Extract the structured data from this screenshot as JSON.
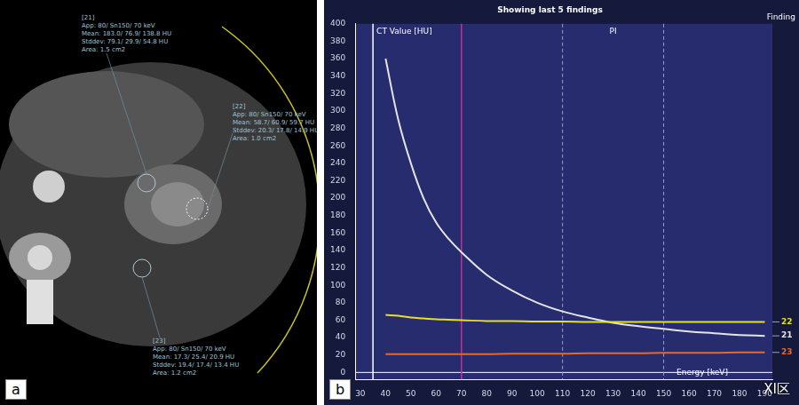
{
  "chart_data": {
    "type": "line",
    "title": "Showing last 5 findings",
    "y_label": "CT Value [HU]",
    "x_label": "Energy [keV]",
    "annotations": [
      "PI",
      "Finding"
    ],
    "x": [
      40,
      45,
      50,
      55,
      60,
      65,
      70,
      80,
      90,
      100,
      110,
      120,
      130,
      140,
      150,
      160,
      170,
      180,
      190
    ],
    "series": [
      {
        "name": "22",
        "color": "#e6df2a",
        "values": [
          66,
          65,
          63,
          62,
          61,
          60.5,
          60,
          59,
          59,
          58.5,
          58.5,
          58,
          58,
          58,
          58,
          58,
          58,
          58,
          58
        ]
      },
      {
        "name": "21",
        "color": "#e4e4e4",
        "values": [
          360,
          290,
          240,
          200,
          172,
          153,
          138,
          112,
          94,
          80,
          70,
          63,
          57,
          53,
          50,
          47,
          45,
          43,
          42
        ]
      },
      {
        "name": "23",
        "color": "#e8682a",
        "values": [
          21,
          21,
          21,
          21,
          21,
          21,
          21,
          21,
          21.5,
          21.5,
          21.5,
          22,
          22,
          22,
          22.5,
          22.5,
          22.5,
          23,
          23
        ]
      }
    ],
    "vlines": [
      {
        "value": 35,
        "color": "#ffffff",
        "line_style": "solid"
      },
      {
        "value": 70,
        "color": "#c0309a",
        "line_style": "solid"
      },
      {
        "value": 110,
        "color": "#9aa0c8",
        "line_style": "dashed"
      },
      {
        "value": 150,
        "color": "#9aa0c8",
        "line_style": "dashed"
      }
    ],
    "xlim": [
      28,
      193
    ],
    "xticks": [
      30,
      40,
      50,
      60,
      70,
      80,
      90,
      100,
      110,
      120,
      130,
      140,
      150,
      160,
      170,
      180,
      190
    ],
    "ylim": [
      -8,
      400
    ],
    "yticks": [
      0,
      20,
      40,
      60,
      80,
      100,
      120,
      140,
      160,
      180,
      200,
      220,
      240,
      260,
      280,
      300,
      320,
      340,
      360,
      380,
      400
    ],
    "grid": false,
    "label": "b"
  },
  "image_a": {
    "label": "a",
    "annotations": [
      {
        "id": "[21]",
        "lines": [
          "App: 80/ Sn150/ 70 keV",
          "Mean: 183.0/ 76.9/ 138.8 HU",
          "Stddev: 79.1/ 29.9/ 54.8 HU",
          "Area: 1.5 cm2"
        ]
      },
      {
        "id": "[22]",
        "lines": [
          "App: 80/ Sn150/ 70 keV",
          "Mean: 58.7/ 60.9/ 59.7 HU",
          "Stddev: 20.3/ 17.8/ 14.9 HU",
          "Area: 1.0 cm2"
        ]
      },
      {
        "id": "[23]",
        "lines": [
          "App: 80/ Sn150/ 70 keV",
          "Mean: 17.3/ 25.4/ 20.9 HU",
          "Stddev: 19.4/ 17.4/ 13.4 HU",
          "Area: 1.2 cm2"
        ]
      }
    ]
  },
  "watermark": "XI区"
}
